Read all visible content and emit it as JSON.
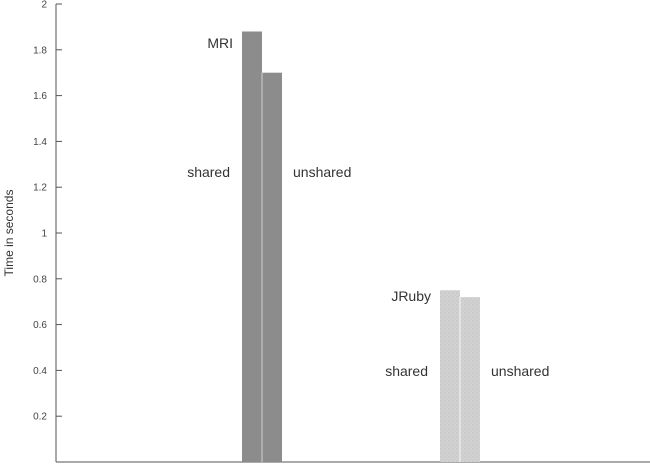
{
  "chart_data": {
    "type": "bar",
    "title": "",
    "xlabel": "",
    "ylabel": "Time in seconds",
    "ylim": [
      0,
      2
    ],
    "yticks": [
      "0.2",
      "0.4",
      "0.6",
      "0.8",
      "1",
      "1.2",
      "1.4",
      "1.6",
      "1.8",
      "2"
    ],
    "grid": false,
    "colors": {
      "mri": "#8c8c8c",
      "jruby": "#d2d2d2",
      "axis": "#555555"
    },
    "groups": [
      {
        "name": "MRI",
        "bars": [
          {
            "label": "shared",
            "value": 1.88
          },
          {
            "label": "unshared",
            "value": 1.7
          }
        ]
      },
      {
        "name": "JRuby",
        "bars": [
          {
            "label": "shared",
            "value": 0.75
          },
          {
            "label": "unshared",
            "value": 0.72
          }
        ]
      }
    ]
  }
}
